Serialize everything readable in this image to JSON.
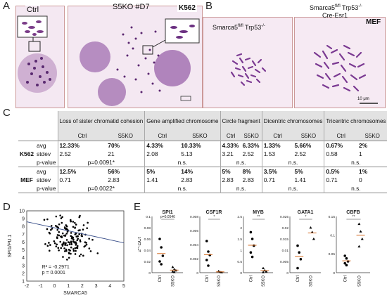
{
  "panels": {
    "A": "A",
    "B": "B",
    "C": "C",
    "D": "D",
    "E": "E"
  },
  "panelA": {
    "ctrl": "Ctrl",
    "s5ko": "S5KO #D7",
    "line": "K562"
  },
  "panelB": {
    "left_base": "Smarca5",
    "left_sup": "fl/fl",
    "left_rest": " Trp53",
    "left_sup2": "-/-",
    "right_base": "Smarca5",
    "right_sup": "fl/fl",
    "right_rest": " Trp53",
    "right_sup2": "-/-",
    "right_line2": "Cre-Esr1",
    "line": "MEF",
    "scale": "10 μm"
  },
  "table": {
    "headers": [
      "Loss of sister chromatid cohesion",
      "Gene amplified chromosome",
      "Circle fragment",
      "Dicentric chromosomes",
      "Tricentric chromosomes"
    ],
    "sub": [
      "Ctrl",
      "S5KO"
    ],
    "groups": [
      {
        "name": "K562",
        "rows": [
          {
            "label": "avg",
            "vals": [
              "12.33%",
              "70%",
              "4.33%",
              "10.33%",
              "4.33%",
              "6.33%",
              "1.33%",
              "5.66%",
              "0.67%",
              "2%"
            ]
          },
          {
            "label": "stdev",
            "vals": [
              "2.52",
              "21",
              "2.08",
              "5.13",
              "3.21",
              "2.52",
              "1.53",
              "2.52",
              "0.58",
              "1"
            ]
          },
          {
            "label": "p-value",
            "vals": [
              "p=0.0091*",
              "n.s.",
              "n.s.",
              "n.s.",
              "n.s."
            ]
          }
        ]
      },
      {
        "name": "MEF",
        "rows": [
          {
            "label": "avg",
            "vals": [
              "12.5%",
              "56%",
              "5%",
              "14%",
              "5%",
              "8%",
              "3.5%",
              "5%",
              "0.5%",
              "1%"
            ]
          },
          {
            "label": "stdev",
            "vals": [
              "0.71",
              "2.83",
              "1.41",
              "2.83",
              "2.83",
              "2.83",
              "0.71",
              "1.41",
              "0.71",
              "0"
            ]
          },
          {
            "label": "p-value",
            "vals": [
              "p=0.0022*",
              "n.s.",
              "n.s.",
              "n.s.",
              "n.s."
            ]
          }
        ]
      }
    ]
  },
  "chart_data": [
    {
      "type": "scatter",
      "xlabel": "SMARCA5",
      "ylabel": "SPI1/PU.1",
      "xlim": [
        -2,
        5
      ],
      "ylim": [
        1,
        10
      ],
      "xticks": [
        "-2",
        "-1",
        "0",
        "1",
        "2",
        "3",
        "4",
        "5"
      ],
      "yticks": [
        "1",
        "2",
        "3",
        "4",
        "5",
        "6",
        "7",
        "8",
        "9",
        "10"
      ],
      "annotation_r2": "R² = -0.2971",
      "annotation_p": "p = 0.0001",
      "trend": [
        [
          -2,
          8.6
        ],
        [
          5,
          5.9
        ]
      ]
    },
    {
      "type": "scatter",
      "ylabel": "2^-ΔCt",
      "genes": [
        "SPI1",
        "CSF1R",
        "MYB",
        "GATA1",
        "CBFB"
      ],
      "groups": [
        "Ctrl",
        "S5KO"
      ],
      "pvalues": [
        "p=0.0546",
        "*",
        "**",
        "*",
        "**"
      ]
    }
  ]
}
